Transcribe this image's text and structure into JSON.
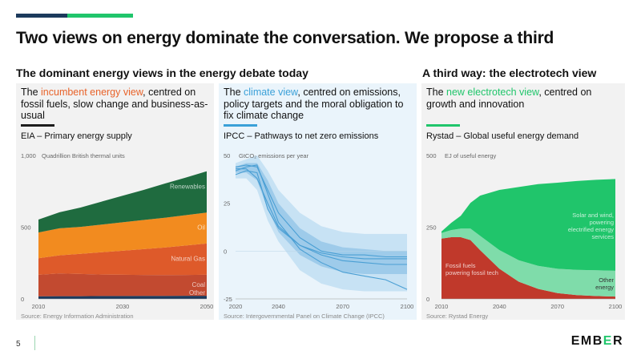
{
  "page": {
    "title": "Two views on energy dominate the conversation. We propose a third",
    "section_left": "The dominant energy views in the energy debate today",
    "section_right": "A third way: the electrotech view",
    "page_number": "5",
    "logo_text": "EMB",
    "logo_accent": "E",
    "logo_end": "R"
  },
  "colors": {
    "navy": "#1c3a5c",
    "green": "#20c56b",
    "incumbent_orange": "#e8632a",
    "climate_blue": "#3aa0d8",
    "electrotech_green": "#20c56b"
  },
  "panels": [
    {
      "title_pre": "The ",
      "title_hl": "incumbent energy view",
      "title_post": ", centred on fossil fuels, slow change and business-as-usual",
      "hl_color": "#e8632a",
      "line_color": "#1c1c1c",
      "subtitle": "EIA – Primary energy supply",
      "unit": "Quadrillion British thermal units",
      "source": "Source: Energy Information Administration"
    },
    {
      "title_pre": "The ",
      "title_hl": "climate view",
      "title_post": ", centred on emissions, policy targets and the moral obligation to fix climate change",
      "hl_color": "#3aa0d8",
      "line_color": "#3aa0d8",
      "subtitle": "IPCC – Pathways to net zero emissions",
      "unit": "GtCO₂ emissions per year",
      "source": "Source: Intergovernmental Panel on Climate Change (IPCC)"
    },
    {
      "title_pre": "The ",
      "title_hl": "new electrotech view",
      "title_post": ", centred on growth and innovation",
      "hl_color": "#20c56b",
      "line_color": "#20c56b",
      "subtitle": "Rystad – Global useful energy demand",
      "unit": "EJ of useful energy",
      "source": "Source: Rystad Energy"
    }
  ],
  "chart_data": [
    {
      "type": "area",
      "stacked": true,
      "x": [
        2010,
        2015,
        2020,
        2025,
        2030,
        2035,
        2040,
        2045,
        2050
      ],
      "ylim": [
        0,
        1000
      ],
      "xticks": [
        2010,
        2030,
        2050
      ],
      "yticks": [
        0,
        500,
        1000
      ],
      "ytick_labels": [
        "0",
        "500",
        "1,000"
      ],
      "series": [
        {
          "name": "Other",
          "color": "#1c3a5c",
          "values": [
            18,
            19,
            19,
            20,
            20,
            21,
            21,
            22,
            22
          ]
        },
        {
          "name": "Coal",
          "color": "#c24a30",
          "values": [
            150,
            158,
            155,
            150,
            148,
            146,
            145,
            145,
            146
          ]
        },
        {
          "name": "Natural Gas",
          "color": "#de5a2a",
          "values": [
            115,
            127,
            140,
            155,
            168,
            180,
            192,
            205,
            218
          ]
        },
        {
          "name": "Oil",
          "color": "#f28b1f",
          "values": [
            180,
            188,
            188,
            193,
            198,
            203,
            208,
            212,
            216
          ]
        },
        {
          "name": "Renewables",
          "color": "#1f6b3f",
          "values": [
            90,
            112,
            135,
            160,
            185,
            210,
            238,
            262,
            288
          ]
        }
      ]
    },
    {
      "type": "line",
      "x": [
        2020,
        2025,
        2030,
        2035,
        2040,
        2050,
        2060,
        2070,
        2080,
        2090,
        2100
      ],
      "ylim": [
        -25,
        50
      ],
      "xlim": [
        2020,
        2100
      ],
      "xticks": [
        2020,
        2040,
        2070,
        2100
      ],
      "yticks": [
        -25,
        0,
        25,
        50
      ],
      "series": [
        {
          "name": "",
          "color": "#4a9fd4",
          "values": [
            42,
            44,
            45,
            30,
            15,
            1,
            -6,
            -11,
            -13,
            -15,
            -20
          ]
        },
        {
          "name": "",
          "color": "#4a9fd4",
          "values": [
            40,
            42,
            41,
            22,
            12,
            3,
            -2,
            -5,
            -6,
            -7,
            -7
          ]
        },
        {
          "name": "",
          "color": "#4a9fd4",
          "values": [
            43,
            43,
            38,
            25,
            13,
            3,
            -1,
            -3,
            -4,
            -4,
            -4
          ]
        },
        {
          "name": "",
          "color": "#4a9fd4",
          "values": [
            44,
            45,
            44,
            32,
            20,
            7,
            0,
            -2,
            -2,
            -3,
            -3
          ]
        }
      ],
      "band_outer": {
        "upper": [
          46,
          48,
          50,
          42,
          32,
          20,
          13,
          10,
          9,
          9,
          9
        ],
        "lower": [
          38,
          38,
          32,
          16,
          5,
          -10,
          -17,
          -20,
          -21,
          -21,
          -21
        ]
      },
      "band_inner": {
        "upper": [
          44,
          46,
          46,
          37,
          25,
          12,
          5,
          2,
          1,
          0,
          0
        ],
        "lower": [
          41,
          41,
          37,
          22,
          10,
          -2,
          -8,
          -11,
          -12,
          -12,
          -12
        ]
      }
    },
    {
      "type": "area",
      "stacked": true,
      "x": [
        2010,
        2015,
        2020,
        2025,
        2030,
        2040,
        2050,
        2060,
        2070,
        2080,
        2090,
        2100
      ],
      "xlim": [
        2010,
        2100
      ],
      "ylim": [
        0,
        500
      ],
      "xticks": [
        2010,
        2040,
        2070,
        2100
      ],
      "yticks": [
        0,
        250,
        500
      ],
      "series": [
        {
          "name": "Fossil fuels powering fossil tech",
          "color": "#c0392b",
          "values": [
            210,
            215,
            215,
            205,
            170,
            105,
            60,
            35,
            20,
            13,
            10,
            8
          ]
        },
        {
          "name": "Other energy",
          "color": "#7fdcaa",
          "values": [
            20,
            25,
            30,
            40,
            50,
            65,
            75,
            80,
            85,
            88,
            90,
            90
          ]
        },
        {
          "name": "Solar and wind, powering electrified energy services",
          "color": "#20c56b",
          "values": [
            5,
            25,
            45,
            90,
            140,
            210,
            255,
            285,
            300,
            310,
            315,
            320
          ]
        }
      ]
    }
  ]
}
